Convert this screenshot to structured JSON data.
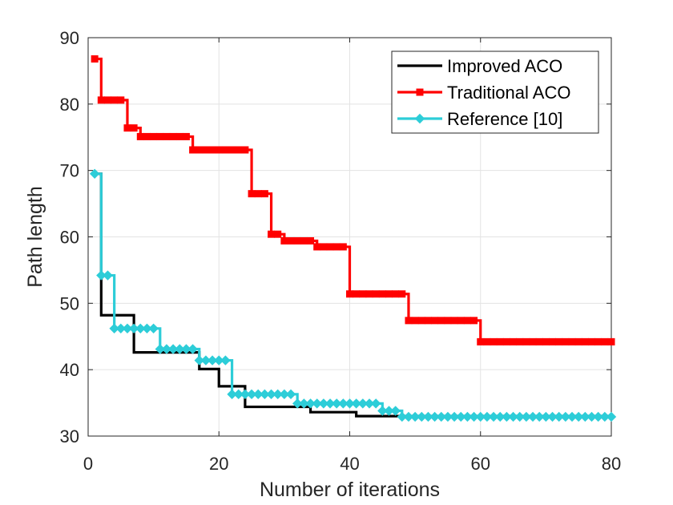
{
  "chart_data": {
    "type": "line",
    "title": "",
    "xlabel": "Number of iterations",
    "ylabel": "Path length",
    "xlim": [
      0,
      80
    ],
    "ylim": [
      30,
      90
    ],
    "xticks": [
      0,
      20,
      40,
      60,
      80
    ],
    "yticks": [
      30,
      40,
      50,
      60,
      70,
      80,
      90
    ],
    "xtick_labels": [
      "0",
      "20",
      "40",
      "60",
      "80"
    ],
    "ytick_labels": [
      "30",
      "40",
      "50",
      "60",
      "70",
      "80",
      "90"
    ],
    "grid": true,
    "legend_position": "top-right",
    "x": [
      1,
      2,
      3,
      4,
      5,
      6,
      7,
      8,
      9,
      10,
      11,
      12,
      13,
      14,
      15,
      16,
      17,
      18,
      19,
      20,
      21,
      22,
      23,
      24,
      25,
      26,
      27,
      28,
      29,
      30,
      31,
      32,
      33,
      34,
      35,
      36,
      37,
      38,
      39,
      40,
      41,
      42,
      43,
      44,
      45,
      46,
      47,
      48,
      49,
      50,
      51,
      52,
      53,
      54,
      55,
      56,
      57,
      58,
      59,
      60,
      61,
      62,
      63,
      64,
      65,
      66,
      67,
      68,
      69,
      70,
      71,
      72,
      73,
      74,
      75,
      76,
      77,
      78,
      79,
      80
    ],
    "series": [
      {
        "name": "Improved ACO",
        "color": "#000000",
        "marker": "none",
        "values": [
          69.5,
          48.2,
          48.2,
          48.2,
          48.2,
          48.2,
          42.6,
          42.6,
          42.6,
          42.6,
          42.6,
          42.6,
          42.6,
          42.6,
          42.6,
          42.6,
          40.1,
          40.1,
          40.1,
          37.5,
          37.5,
          37.5,
          37.5,
          34.4,
          34.4,
          34.4,
          34.4,
          34.4,
          34.4,
          34.4,
          34.4,
          34.4,
          34.4,
          33.6,
          33.6,
          33.6,
          33.6,
          33.6,
          33.6,
          33.6,
          33.0,
          33.0,
          33.0,
          33.0,
          33.0,
          33.0,
          33.0,
          33.0,
          33.0,
          33.0,
          33.0,
          33.0,
          33.0,
          33.0,
          33.0,
          33.0,
          33.0,
          33.0,
          33.0,
          33.0,
          33.0,
          33.0,
          33.0,
          33.0,
          33.0,
          33.0,
          33.0,
          33.0,
          33.0,
          33.0,
          33.0,
          33.0,
          33.0,
          33.0,
          33.0,
          33.0,
          33.0,
          33.0,
          33.0,
          33.0
        ]
      },
      {
        "name": "Traditional ACO",
        "color": "#ff0000",
        "marker": "square",
        "values": [
          86.8,
          80.6,
          80.6,
          80.6,
          80.6,
          76.4,
          76.4,
          75.1,
          75.1,
          75.1,
          75.1,
          75.1,
          75.1,
          75.1,
          75.1,
          73.1,
          73.1,
          73.1,
          73.1,
          73.1,
          73.1,
          73.1,
          73.1,
          73.1,
          66.5,
          66.5,
          66.5,
          60.4,
          60.4,
          59.4,
          59.4,
          59.4,
          59.4,
          59.4,
          58.5,
          58.5,
          58.5,
          58.5,
          58.5,
          51.4,
          51.4,
          51.4,
          51.4,
          51.4,
          51.4,
          51.4,
          51.4,
          51.4,
          47.4,
          47.4,
          47.4,
          47.4,
          47.4,
          47.4,
          47.4,
          47.4,
          47.4,
          47.4,
          47.4,
          44.2,
          44.2,
          44.2,
          44.2,
          44.2,
          44.2,
          44.2,
          44.2,
          44.2,
          44.2,
          44.2,
          44.2,
          44.2,
          44.2,
          44.2,
          44.2,
          44.2,
          44.2,
          44.2,
          44.2,
          44.2
        ]
      },
      {
        "name": "Reference [10]",
        "color": "#2dcdd8",
        "marker": "diamond",
        "values": [
          69.5,
          54.2,
          54.2,
          46.2,
          46.2,
          46.2,
          46.2,
          46.2,
          46.2,
          46.2,
          43.1,
          43.1,
          43.1,
          43.1,
          43.1,
          43.1,
          41.4,
          41.4,
          41.4,
          41.4,
          41.4,
          36.3,
          36.3,
          36.3,
          36.3,
          36.3,
          36.3,
          36.3,
          36.3,
          36.3,
          36.3,
          34.9,
          34.9,
          34.9,
          34.9,
          34.9,
          34.9,
          34.9,
          34.9,
          34.9,
          34.9,
          34.9,
          34.9,
          34.9,
          33.8,
          33.8,
          33.8,
          32.9,
          32.9,
          32.9,
          32.9,
          32.9,
          32.9,
          32.9,
          32.9,
          32.9,
          32.9,
          32.9,
          32.9,
          32.9,
          32.9,
          32.9,
          32.9,
          32.9,
          32.9,
          32.9,
          32.9,
          32.9,
          32.9,
          32.9,
          32.9,
          32.9,
          32.9,
          32.9,
          32.9,
          32.9,
          32.9,
          32.9,
          32.9,
          32.9
        ]
      }
    ]
  }
}
